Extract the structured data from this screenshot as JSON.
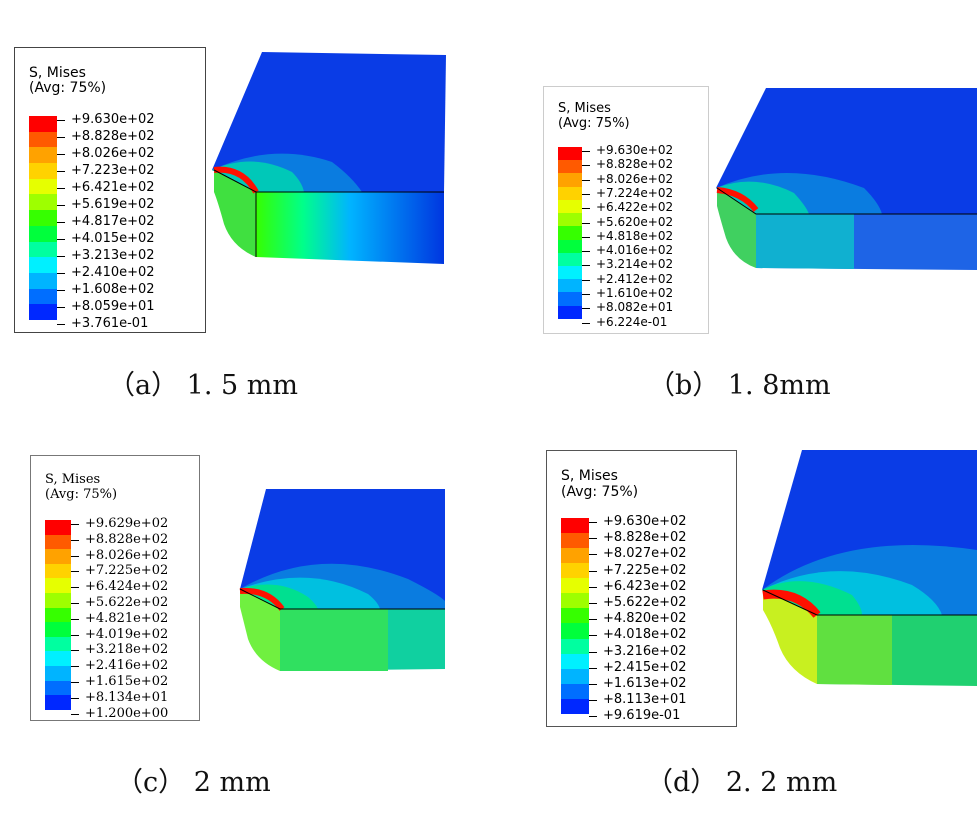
{
  "colors": [
    "#ff0000",
    "#ff5a00",
    "#ffa200",
    "#ffd200",
    "#e6ff00",
    "#9eff00",
    "#36ff00",
    "#00ff3c",
    "#00ffa0",
    "#00f0ff",
    "#00b4ff",
    "#006eff",
    "#0028ff"
  ],
  "panels": [
    {
      "caption": "（a）  1. 5 mm",
      "title": "S, Mises",
      "avg": "(Avg: 75%)",
      "values": [
        "+9.630e+02",
        "+8.828e+02",
        "+8.026e+02",
        "+7.223e+02",
        "+6.421e+02",
        "+5.619e+02",
        "+4.817e+02",
        "+4.015e+02",
        "+3.213e+02",
        "+2.410e+02",
        "+1.608e+02",
        "+8.059e+01",
        "+3.761e-01"
      ]
    },
    {
      "caption": "（b）  1. 8mm",
      "title": "S, Mises",
      "avg": "(Avg: 75%)",
      "values": [
        "+9.630e+02",
        "+8.828e+02",
        "+8.026e+02",
        "+7.224e+02",
        "+6.422e+02",
        "+5.620e+02",
        "+4.818e+02",
        "+4.016e+02",
        "+3.214e+02",
        "+2.412e+02",
        "+1.610e+02",
        "+8.082e+01",
        "+6.224e-01"
      ]
    },
    {
      "caption": "（c）  2 mm",
      "title": "S, Mises",
      "avg": "(Avg: 75%)",
      "values": [
        "+9.629e+02",
        "+8.828e+02",
        "+8.026e+02",
        "+7.225e+02",
        "+6.424e+02",
        "+5.622e+02",
        "+4.821e+02",
        "+4.019e+02",
        "+3.218e+02",
        "+2.416e+02",
        "+1.615e+02",
        "+8.134e+01",
        "+1.200e+00"
      ]
    },
    {
      "caption": "（d）  2. 2 mm",
      "title": "S, Mises",
      "avg": "(Avg: 75%)",
      "values": [
        "+9.630e+02",
        "+8.828e+02",
        "+8.027e+02",
        "+7.225e+02",
        "+6.423e+02",
        "+5.622e+02",
        "+4.820e+02",
        "+4.018e+02",
        "+3.216e+02",
        "+2.415e+02",
        "+1.613e+02",
        "+8.113e+01",
        "+9.619e-01"
      ]
    }
  ]
}
